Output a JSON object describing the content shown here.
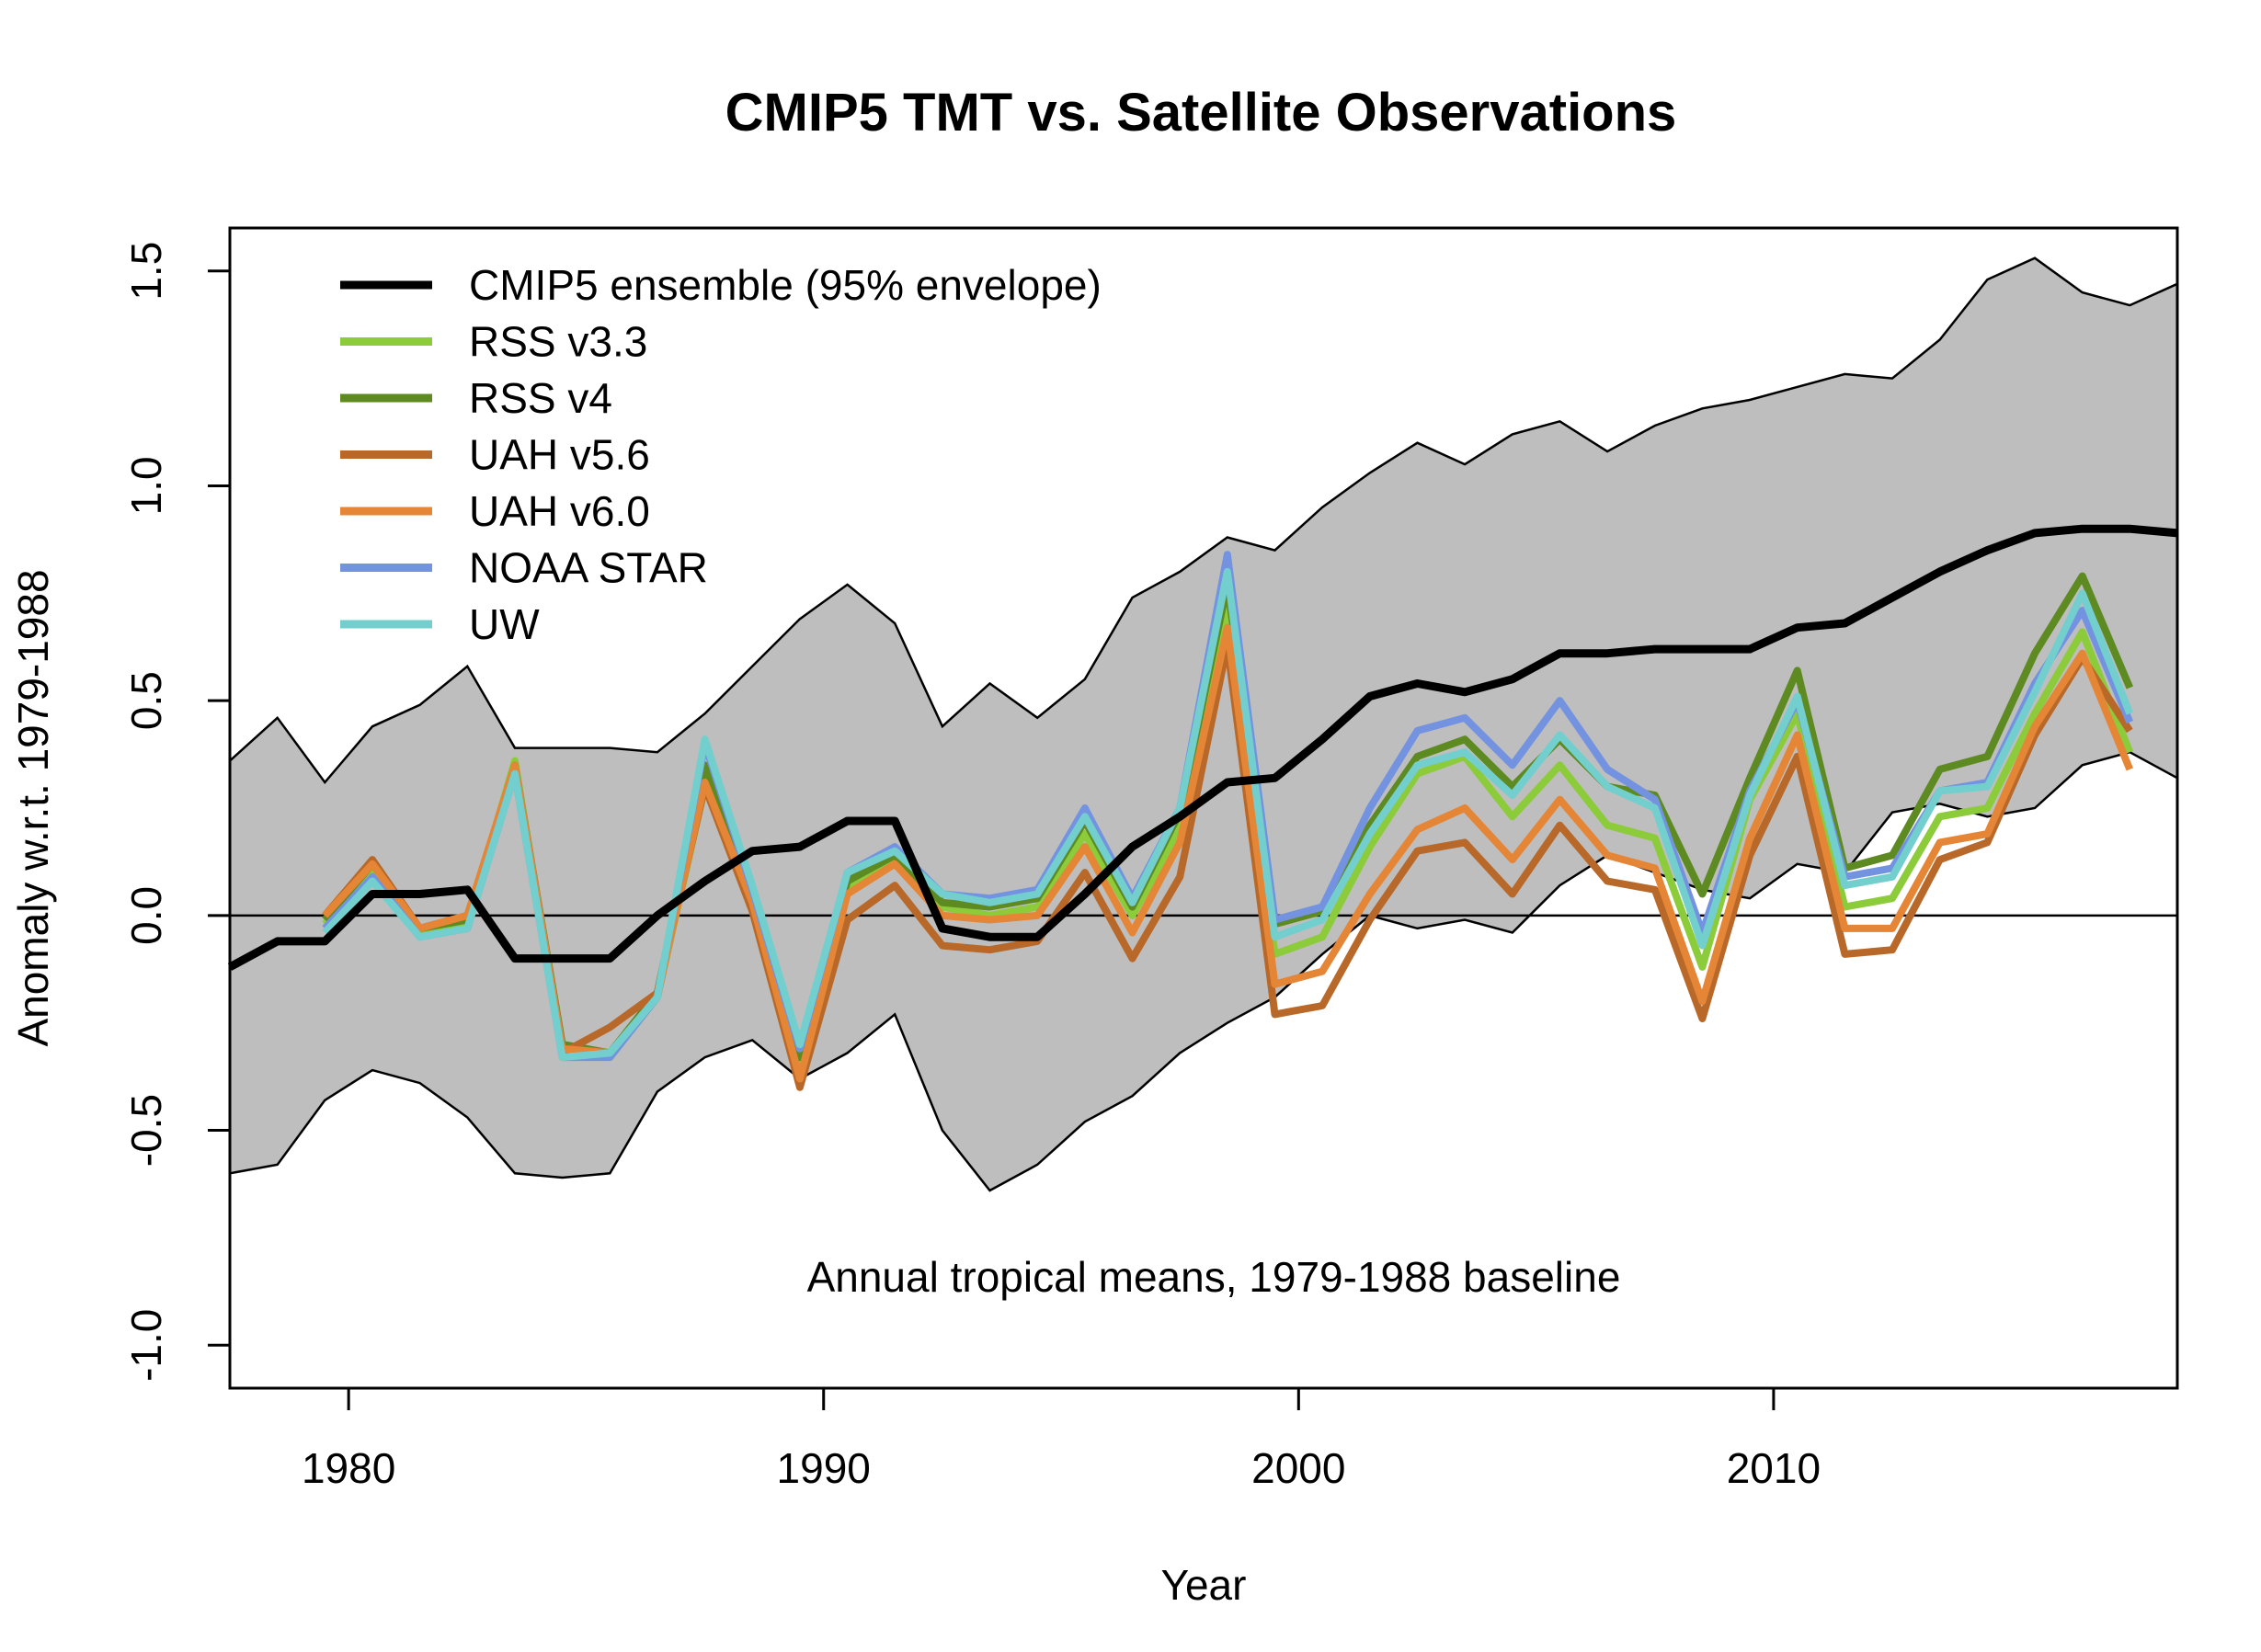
{
  "chart_data": {
    "type": "line",
    "title": "CMIP5 TMT vs. Satellite Observations",
    "xlabel": "Year",
    "ylabel": "Anomaly w.r.t. 1979-1988",
    "xlim": [
      1977.5,
      2018.5
    ],
    "ylim": [
      -1.1,
      1.6
    ],
    "xticks": [
      1980,
      1990,
      2000,
      2010
    ],
    "yticks": [
      -1.0,
      -0.5,
      0.0,
      0.5,
      1.0,
      1.5
    ],
    "xtick_labels": [
      "1980",
      "1990",
      "2000",
      "2010"
    ],
    "ytick_labels": [
      "-1.0",
      "-0.5",
      "0.0",
      "0.5",
      "1.0",
      "1.5"
    ],
    "annotation": "Annual tropical means, 1979-1988 baseline",
    "zero_line": true,
    "legend_position": "top-left",
    "envelope": {
      "color": "#bebebe",
      "x": [
        1977.5,
        1978.5,
        1979.5,
        1980.5,
        1981.5,
        1982.5,
        1983.5,
        1984.5,
        1985.5,
        1986.5,
        1987.5,
        1988.5,
        1989.5,
        1990.5,
        1991.5,
        1992.5,
        1993.5,
        1994.5,
        1995.5,
        1996.5,
        1997.5,
        1998.5,
        1999.5,
        2000.5,
        2001.5,
        2002.5,
        2003.5,
        2004.5,
        2005.5,
        2006.5,
        2007.5,
        2008.5,
        2009.5,
        2010.5,
        2011.5,
        2012.5,
        2013.5,
        2014.5,
        2015.5,
        2016.5,
        2017.5,
        2018.5
      ],
      "upper": [
        0.36,
        0.46,
        0.31,
        0.44,
        0.49,
        0.58,
        0.39,
        0.39,
        0.39,
        0.38,
        0.47,
        0.58,
        0.69,
        0.77,
        0.68,
        0.44,
        0.54,
        0.46,
        0.55,
        0.74,
        0.8,
        0.88,
        0.85,
        0.95,
        1.03,
        1.1,
        1.05,
        1.12,
        1.15,
        1.08,
        1.14,
        1.18,
        1.2,
        1.23,
        1.26,
        1.25,
        1.34,
        1.48,
        1.53,
        1.45,
        1.42,
        1.47
      ],
      "lower": [
        -0.6,
        -0.58,
        -0.43,
        -0.36,
        -0.39,
        -0.47,
        -0.6,
        -0.61,
        -0.6,
        -0.41,
        -0.33,
        -0.29,
        -0.38,
        -0.32,
        -0.23,
        -0.5,
        -0.64,
        -0.58,
        -0.48,
        -0.42,
        -0.32,
        -0.25,
        -0.19,
        -0.09,
        0.0,
        -0.03,
        -0.01,
        -0.04,
        0.07,
        0.14,
        0.1,
        0.06,
        0.04,
        0.12,
        0.1,
        0.24,
        0.26,
        0.23,
        0.25,
        0.35,
        0.38,
        0.32
      ]
    },
    "series": [
      {
        "name": "CMIP5 ensemble (95% envelope)",
        "color": "#000000",
        "x": [
          1977.5,
          1978.5,
          1979.5,
          1980.5,
          1981.5,
          1982.5,
          1983.5,
          1984.5,
          1985.5,
          1986.5,
          1987.5,
          1988.5,
          1989.5,
          1990.5,
          1991.5,
          1992.5,
          1993.5,
          1994.5,
          1995.5,
          1996.5,
          1997.5,
          1998.5,
          1999.5,
          2000.5,
          2001.5,
          2002.5,
          2003.5,
          2004.5,
          2005.5,
          2006.5,
          2007.5,
          2008.5,
          2009.5,
          2010.5,
          2011.5,
          2012.5,
          2013.5,
          2014.5,
          2015.5,
          2016.5,
          2017.5,
          2018.5
        ],
        "values": [
          -0.12,
          -0.06,
          -0.06,
          0.05,
          0.05,
          0.06,
          -0.1,
          -0.1,
          -0.1,
          0.0,
          0.08,
          0.15,
          0.16,
          0.22,
          0.22,
          -0.03,
          -0.05,
          -0.05,
          0.05,
          0.16,
          0.23,
          0.31,
          0.32,
          0.41,
          0.51,
          0.54,
          0.52,
          0.55,
          0.61,
          0.61,
          0.62,
          0.62,
          0.62,
          0.67,
          0.68,
          0.74,
          0.8,
          0.85,
          0.89,
          0.9,
          0.9,
          0.89
        ]
      },
      {
        "name": "RSS v3.3",
        "color": "#8ccb3a",
        "x": [
          1979.5,
          1980.5,
          1981.5,
          1982.5,
          1983.5,
          1984.5,
          1985.5,
          1986.5,
          1987.5,
          1988.5,
          1989.5,
          1990.5,
          1991.5,
          1992.5,
          1993.5,
          1994.5,
          1995.5,
          1996.5,
          1997.5,
          1998.5,
          1999.5,
          2000.5,
          2001.5,
          2002.5,
          2003.5,
          2004.5,
          2005.5,
          2006.5,
          2007.5,
          2008.5,
          2009.5,
          2010.5,
          2011.5,
          2012.5,
          2013.5,
          2014.5,
          2015.5,
          2016.5,
          2017.5
        ],
        "values": [
          -0.02,
          0.1,
          -0.04,
          -0.02,
          0.36,
          -0.32,
          -0.33,
          -0.19,
          0.3,
          0.05,
          -0.35,
          0.07,
          0.13,
          0.02,
          0.0,
          0.02,
          0.19,
          0.0,
          0.2,
          0.72,
          -0.09,
          -0.05,
          0.16,
          0.33,
          0.37,
          0.23,
          0.35,
          0.21,
          0.18,
          -0.12,
          0.27,
          0.47,
          0.02,
          0.04,
          0.23,
          0.25,
          0.47,
          0.66,
          0.38
        ]
      },
      {
        "name": "RSS v4",
        "color": "#5e8a22",
        "x": [
          1979.5,
          1980.5,
          1981.5,
          1982.5,
          1983.5,
          1984.5,
          1985.5,
          1986.5,
          1987.5,
          1988.5,
          1989.5,
          1990.5,
          1991.5,
          1992.5,
          1993.5,
          1994.5,
          1995.5,
          1996.5,
          1997.5,
          1998.5,
          1999.5,
          2000.5,
          2001.5,
          2002.5,
          2003.5,
          2004.5,
          2005.5,
          2006.5,
          2007.5,
          2008.5,
          2009.5,
          2010.5,
          2011.5,
          2012.5,
          2013.5,
          2014.5,
          2015.5,
          2016.5,
          2017.5
        ],
        "values": [
          -0.01,
          0.12,
          -0.03,
          -0.01,
          0.35,
          -0.3,
          -0.32,
          -0.18,
          0.35,
          0.06,
          -0.33,
          0.08,
          0.14,
          0.03,
          0.02,
          0.04,
          0.22,
          0.02,
          0.24,
          0.77,
          -0.02,
          0.01,
          0.21,
          0.37,
          0.41,
          0.3,
          0.41,
          0.3,
          0.28,
          0.05,
          0.32,
          0.57,
          0.11,
          0.14,
          0.34,
          0.37,
          0.61,
          0.79,
          0.53
        ]
      },
      {
        "name": "UAH v5.6",
        "color": "#b8692a",
        "x": [
          1979.5,
          1980.5,
          1981.5,
          1982.5,
          1983.5,
          1984.5,
          1985.5,
          1986.5,
          1987.5,
          1988.5,
          1989.5,
          1990.5,
          1991.5,
          1992.5,
          1993.5,
          1994.5,
          1995.5,
          1996.5,
          1997.5,
          1998.5,
          1999.5,
          2000.5,
          2001.5,
          2002.5,
          2003.5,
          2004.5,
          2005.5,
          2006.5,
          2007.5,
          2008.5,
          2009.5,
          2010.5,
          2011.5,
          2012.5,
          2013.5,
          2014.5,
          2015.5,
          2016.5,
          2017.5
        ],
        "values": [
          0.0,
          0.13,
          -0.03,
          0.0,
          0.33,
          -0.32,
          -0.26,
          -0.18,
          0.3,
          0.01,
          -0.4,
          -0.01,
          0.07,
          -0.07,
          -0.08,
          -0.06,
          0.1,
          -0.1,
          0.09,
          0.63,
          -0.23,
          -0.21,
          -0.01,
          0.15,
          0.17,
          0.05,
          0.21,
          0.08,
          0.06,
          -0.24,
          0.14,
          0.37,
          -0.09,
          -0.08,
          0.13,
          0.17,
          0.42,
          0.6,
          0.43
        ]
      },
      {
        "name": "UAH v6.0",
        "color": "#e58536",
        "x": [
          1979.5,
          1980.5,
          1981.5,
          1982.5,
          1983.5,
          1984.5,
          1985.5,
          1986.5,
          1987.5,
          1988.5,
          1989.5,
          1990.5,
          1991.5,
          1992.5,
          1993.5,
          1994.5,
          1995.5,
          1996.5,
          1997.5,
          1998.5,
          1999.5,
          2000.5,
          2001.5,
          2002.5,
          2003.5,
          2004.5,
          2005.5,
          2006.5,
          2007.5,
          2008.5,
          2009.5,
          2010.5,
          2011.5,
          2012.5,
          2013.5,
          2014.5,
          2015.5,
          2016.5,
          2017.5
        ],
        "values": [
          0.0,
          0.12,
          -0.03,
          0.0,
          0.35,
          -0.31,
          -0.32,
          -0.19,
          0.31,
          0.03,
          -0.38,
          0.05,
          0.12,
          0.0,
          -0.01,
          0.0,
          0.16,
          -0.04,
          0.17,
          0.67,
          -0.16,
          -0.13,
          0.05,
          0.2,
          0.25,
          0.13,
          0.27,
          0.14,
          0.11,
          -0.2,
          0.18,
          0.42,
          -0.03,
          -0.03,
          0.17,
          0.19,
          0.44,
          0.61,
          0.34
        ]
      },
      {
        "name": "NOAA STAR",
        "color": "#7393e1",
        "x": [
          1979.5,
          1980.5,
          1981.5,
          1982.5,
          1983.5,
          1984.5,
          1985.5,
          1986.5,
          1987.5,
          1988.5,
          1989.5,
          1990.5,
          1991.5,
          1992.5,
          1993.5,
          1994.5,
          1995.5,
          1996.5,
          1997.5,
          1998.5,
          1999.5,
          2000.5,
          2001.5,
          2002.5,
          2003.5,
          2004.5,
          2005.5,
          2006.5,
          2007.5,
          2008.5,
          2009.5,
          2010.5,
          2011.5,
          2012.5,
          2013.5,
          2014.5,
          2015.5,
          2016.5,
          2017.5
        ],
        "values": [
          -0.03,
          0.09,
          -0.05,
          -0.03,
          0.33,
          -0.33,
          -0.33,
          -0.19,
          0.4,
          0.06,
          -0.31,
          0.1,
          0.16,
          0.05,
          0.04,
          0.06,
          0.25,
          0.04,
          0.25,
          0.84,
          -0.01,
          0.02,
          0.25,
          0.43,
          0.46,
          0.35,
          0.5,
          0.34,
          0.27,
          -0.04,
          0.29,
          0.5,
          0.09,
          0.11,
          0.29,
          0.31,
          0.54,
          0.71,
          0.45
        ]
      },
      {
        "name": "UW",
        "color": "#72cfcd",
        "x": [
          1979.5,
          1980.5,
          1981.5,
          1982.5,
          1983.5,
          1984.5,
          1985.5,
          1986.5,
          1987.5,
          1988.5,
          1989.5,
          1990.5,
          1991.5,
          1992.5,
          1993.5,
          1994.5,
          1995.5,
          1996.5,
          1997.5,
          1998.5,
          1999.5,
          2000.5,
          2001.5,
          2002.5,
          2003.5,
          2004.5,
          2005.5,
          2006.5,
          2007.5,
          2008.5,
          2009.5,
          2010.5,
          2011.5,
          2012.5,
          2013.5,
          2014.5,
          2015.5,
          2016.5,
          2017.5
        ],
        "values": [
          -0.04,
          0.08,
          -0.05,
          -0.03,
          0.33,
          -0.33,
          -0.32,
          -0.19,
          0.41,
          0.07,
          -0.3,
          0.1,
          0.15,
          0.05,
          0.03,
          0.05,
          0.23,
          0.03,
          0.25,
          0.8,
          -0.05,
          -0.01,
          0.19,
          0.35,
          0.38,
          0.28,
          0.42,
          0.3,
          0.25,
          -0.07,
          0.28,
          0.51,
          0.07,
          0.09,
          0.29,
          0.3,
          0.52,
          0.75,
          0.47
        ]
      }
    ]
  }
}
